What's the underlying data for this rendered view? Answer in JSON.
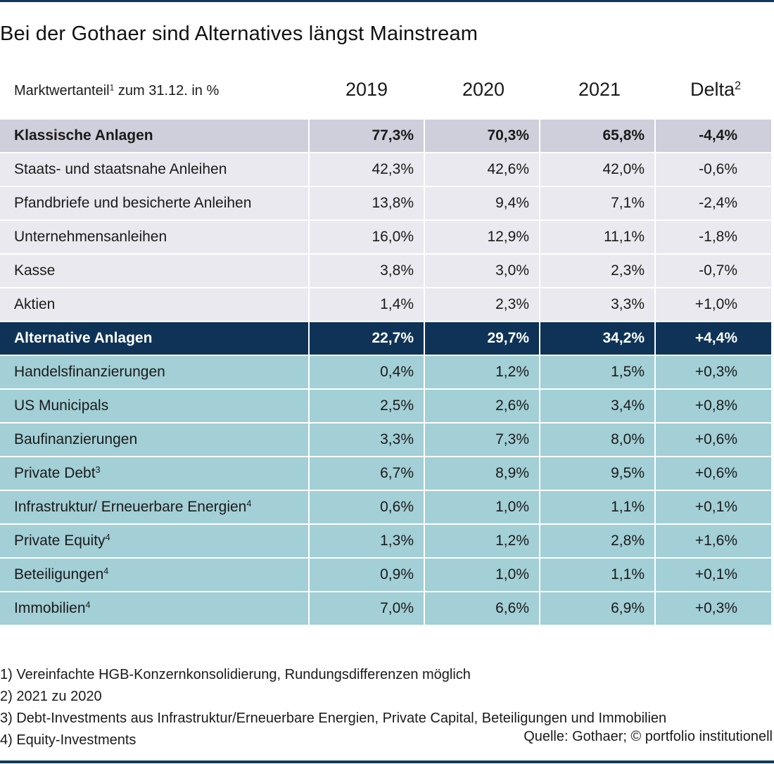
{
  "title": "Bei der Gothaer sind Alternatives längst Mainstream",
  "header": {
    "label": "Marktwertanteil",
    "label_sup": "1",
    "label_suffix": " zum 31.12. in %",
    "years": [
      "2019",
      "2020",
      "2021"
    ],
    "delta": "Delta",
    "delta_sup": "2"
  },
  "rows": [
    {
      "name": "Klassische Anlagen",
      "sup": "",
      "v2019": "77,3%",
      "v2020": "70,3%",
      "v2021": "65,8%",
      "delta": "-4,4%"
    },
    {
      "name": "Staats- und staatsnahe Anleihen",
      "sup": "",
      "v2019": "42,3%",
      "v2020": "42,6%",
      "v2021": "42,0%",
      "delta": "-0,6%"
    },
    {
      "name": "Pfandbriefe und besicherte Anleihen",
      "sup": "",
      "v2019": "13,8%",
      "v2020": "9,4%",
      "v2021": "7,1%",
      "delta": "-2,4%"
    },
    {
      "name": "Unternehmensanleihen",
      "sup": "",
      "v2019": "16,0%",
      "v2020": "12,9%",
      "v2021": "11,1%",
      "delta": "-1,8%"
    },
    {
      "name": "Kasse",
      "sup": "",
      "v2019": "3,8%",
      "v2020": "3,0%",
      "v2021": "2,3%",
      "delta": "-0,7%"
    },
    {
      "name": "Aktien",
      "sup": "",
      "v2019": "1,4%",
      "v2020": "2,3%",
      "v2021": "3,3%",
      "delta": "+1,0%"
    },
    {
      "name": "Alternative Anlagen",
      "sup": "",
      "v2019": "22,7%",
      "v2020": "29,7%",
      "v2021": "34,2%",
      "delta": "+4,4%"
    },
    {
      "name": "Handelsfinanzierungen",
      "sup": "",
      "v2019": "0,4%",
      "v2020": "1,2%",
      "v2021": "1,5%",
      "delta": "+0,3%"
    },
    {
      "name": "US Municipals",
      "sup": "",
      "v2019": "2,5%",
      "v2020": "2,6%",
      "v2021": "3,4%",
      "delta": "+0,8%"
    },
    {
      "name": "Baufinanzierungen",
      "sup": "",
      "v2019": "3,3%",
      "v2020": "7,3%",
      "v2021": "8,0%",
      "delta": "+0,6%"
    },
    {
      "name": "Private Debt",
      "sup": "3",
      "v2019": "6,7%",
      "v2020": "8,9%",
      "v2021": "9,5%",
      "delta": "+0,6%"
    },
    {
      "name": "Infrastruktur/ Erneuerbare Energien",
      "sup": "4",
      "v2019": "0,6%",
      "v2020": "1,0%",
      "v2021": "1,1%",
      "delta": "+0,1%"
    },
    {
      "name": "Private Equity",
      "sup": "4",
      "v2019": "1,3%",
      "v2020": "1,2%",
      "v2021": "2,8%",
      "delta": "+1,6%"
    },
    {
      "name": "Beteiligungen",
      "sup": "4",
      "v2019": "0,9%",
      "v2020": "1,0%",
      "v2021": "1,1%",
      "delta": "+0,1%"
    },
    {
      "name": "Immobilien",
      "sup": "4",
      "v2019": "7,0%",
      "v2020": "6,6%",
      "v2021": "6,9%",
      "delta": "+0,3%"
    }
  ],
  "footnotes": [
    "1) Vereinfachte HGB-Konzernkonsolidierung, Rundungsdifferenzen möglich",
    "2) 2021 zu 2020",
    "3) Debt-Investments aus Infrastruktur/Erneuerbare Energien, Private Capital, Beteiligungen und Immobilien",
    "4) Equity-Investments"
  ],
  "source": "Quelle: Gothaer; © portfolio institutionell",
  "colors": {
    "rule": "#0e3a5b",
    "classic_head_bg": "#cfcfdb",
    "classic_bg": "#e9e9ef",
    "alt_head_bg": "#0e3357",
    "alt_bg": "#a3cfd6"
  }
}
